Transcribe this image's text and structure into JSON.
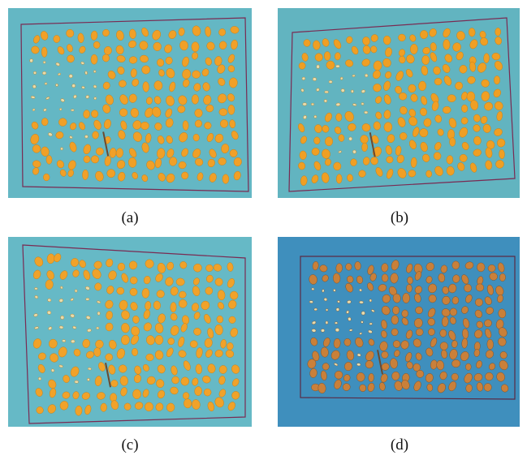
{
  "figure": {
    "panels": [
      {
        "id": "a",
        "caption": "(a)",
        "background": "#64b7c4",
        "frame_color": "#7a2a52",
        "kernel_color": "#f0a028"
      },
      {
        "id": "b",
        "caption": "(b)",
        "background": "#62b4c0",
        "frame_color": "#7a2a52",
        "kernel_color": "#ef9f24"
      },
      {
        "id": "c",
        "caption": "(c)",
        "background": "#66b9c6",
        "frame_color": "#7a2a52",
        "kernel_color": "#f0a22a"
      },
      {
        "id": "d",
        "caption": "(d)",
        "background": "#3f8fbd",
        "frame_color": "#5a2a45",
        "kernel_color": "#c9803a"
      }
    ]
  }
}
